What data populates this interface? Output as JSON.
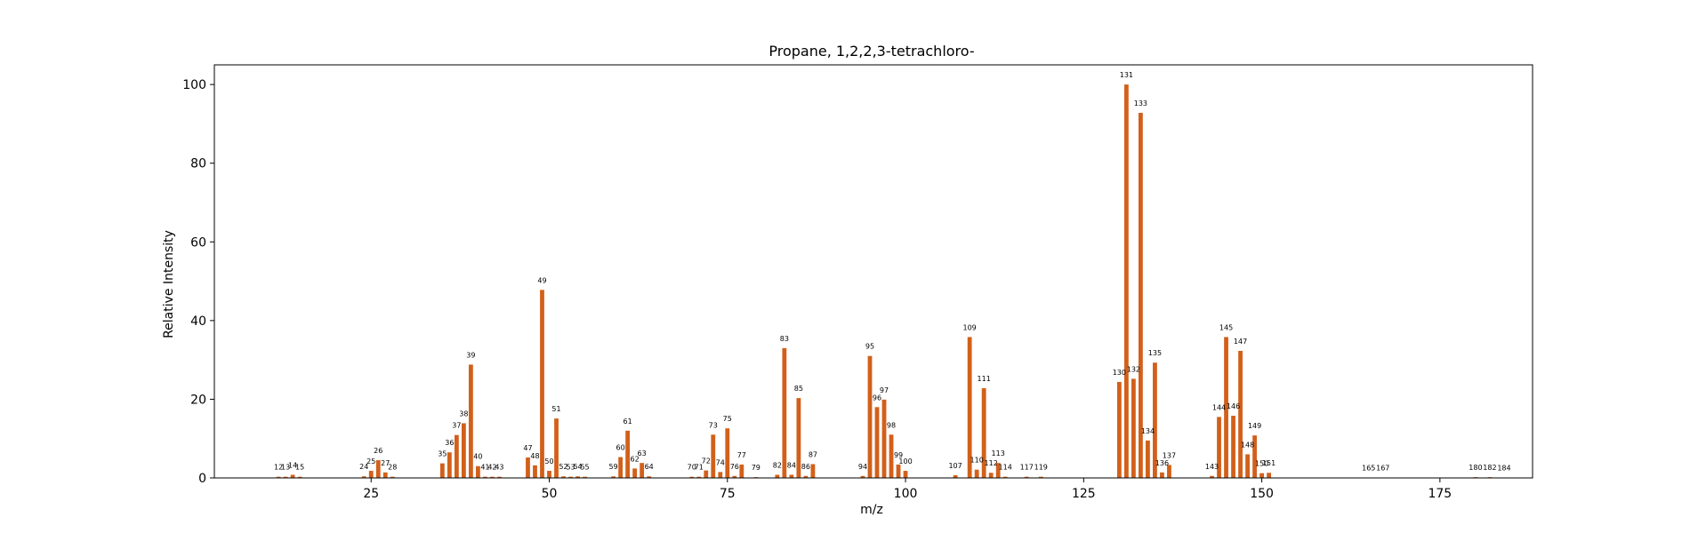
{
  "chart_data": {
    "type": "bar",
    "title": "Propane, 1,2,2,3-tetrachloro-",
    "xlabel": "m/z",
    "ylabel": "Relative Intensity",
    "xlim": [
      3,
      188
    ],
    "ylim": [
      0,
      105
    ],
    "xticks": [
      25,
      50,
      75,
      100,
      125,
      150,
      175
    ],
    "yticks": [
      0,
      20,
      40,
      60,
      80,
      100
    ],
    "grid": false,
    "bar_color": "#d2601a",
    "series": [
      {
        "x": [
          12,
          13,
          14,
          15,
          24,
          25,
          26,
          27,
          28,
          35,
          36,
          37,
          38,
          39,
          40,
          41,
          42,
          43,
          47,
          48,
          49,
          50,
          51,
          52,
          53,
          54,
          55,
          59,
          60,
          61,
          62,
          63,
          64,
          70,
          71,
          72,
          73,
          74,
          75,
          76,
          77,
          79,
          82,
          83,
          84,
          85,
          86,
          87,
          94,
          95,
          96,
          97,
          98,
          99,
          100,
          107,
          109,
          110,
          111,
          112,
          113,
          114,
          117,
          119,
          130,
          131,
          132,
          133,
          134,
          135,
          136,
          137,
          143,
          144,
          145,
          146,
          147,
          148,
          149,
          150,
          151,
          165,
          167,
          180,
          182,
          184
        ],
        "values": [
          0.3,
          0.3,
          0.8,
          0.3,
          0.4,
          1.8,
          4.5,
          1.4,
          0.3,
          3.7,
          6.5,
          10.9,
          13.9,
          28.8,
          3.0,
          0.3,
          0.3,
          0.3,
          5.2,
          3.2,
          47.8,
          1.8,
          15.1,
          0.4,
          0.3,
          0.4,
          0.3,
          0.4,
          5.3,
          12.0,
          2.4,
          3.8,
          0.4,
          0.3,
          0.3,
          1.9,
          11.0,
          1.5,
          12.6,
          0.5,
          3.4,
          0.2,
          0.8,
          33.0,
          0.8,
          20.3,
          0.5,
          3.5,
          0.5,
          31.0,
          18.0,
          19.9,
          11.0,
          3.4,
          1.8,
          0.7,
          35.8,
          2.1,
          22.8,
          1.3,
          3.8,
          0.3,
          0.3,
          0.3,
          24.4,
          100.0,
          25.2,
          92.8,
          9.5,
          29.3,
          1.4,
          3.3,
          0.5,
          15.5,
          35.8,
          15.8,
          32.3,
          6.0,
          10.8,
          1.2,
          1.3,
          0.1,
          0.1,
          0.2,
          0.2,
          0.1
        ]
      }
    ]
  }
}
